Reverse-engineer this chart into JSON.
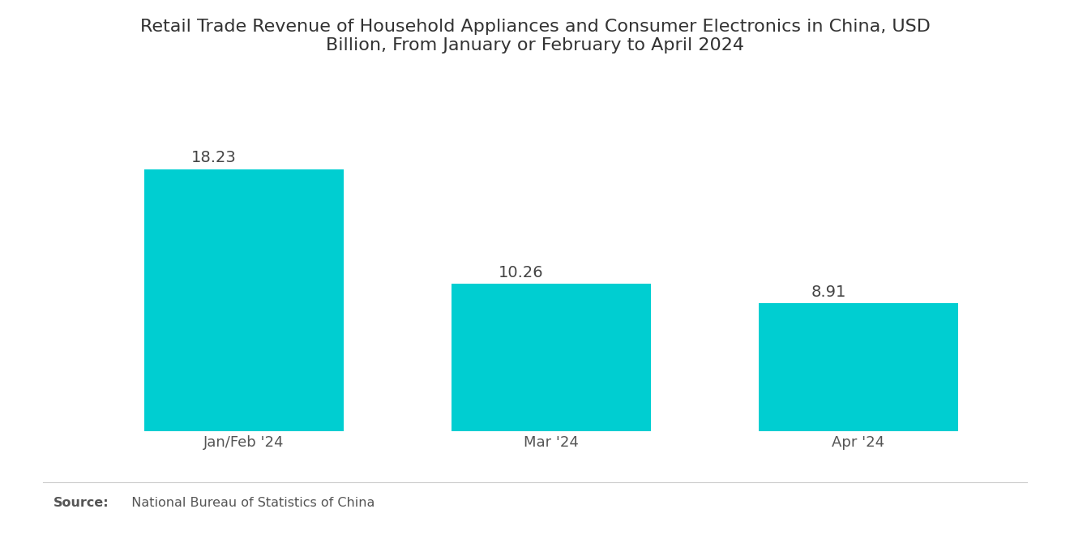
{
  "title": "Retail Trade Revenue of Household Appliances and Consumer Electronics in China, USD\nBillion, From January or February to April 2024",
  "categories": [
    "Jan/Feb '24",
    "Mar '24",
    "Apr '24"
  ],
  "values": [
    18.23,
    10.26,
    8.91
  ],
  "bar_color": "#00CED1",
  "background_color": "#ffffff",
  "value_labels": [
    "18.23",
    "10.26",
    "8.91"
  ],
  "source_bold": "Source:",
  "source_text": "  National Bureau of Statistics of China",
  "title_fontsize": 16,
  "label_fontsize": 13,
  "value_fontsize": 14,
  "source_fontsize": 11.5,
  "bar_width": 0.65,
  "ylim_max": 22.5
}
